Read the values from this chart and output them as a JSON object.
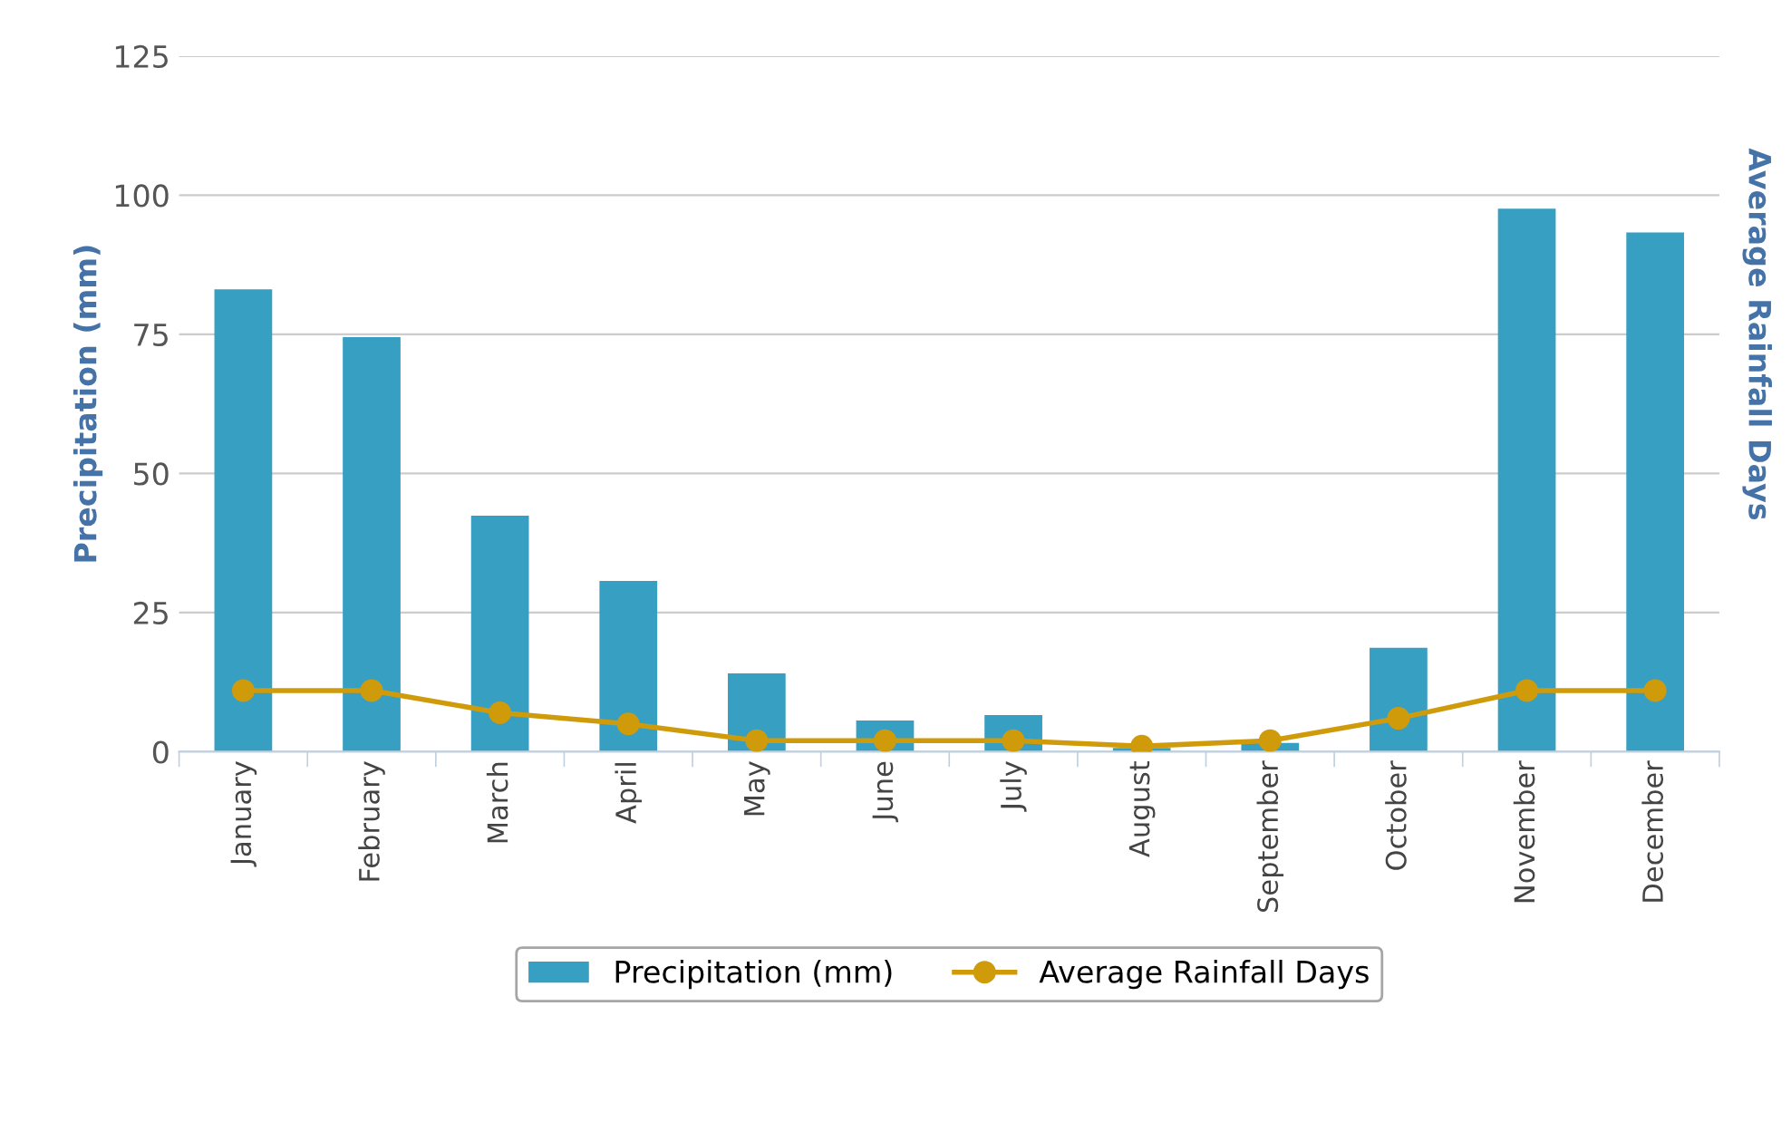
{
  "chart_data": {
    "type": "bar",
    "categories": [
      "January",
      "February",
      "March",
      "April",
      "May",
      "June",
      "July",
      "August",
      "September",
      "October",
      "November",
      "December"
    ],
    "ylabel": "Precipitation (mm)",
    "y2label": "Average Rainfall Days",
    "ylim": [
      0,
      125
    ],
    "yticks": [
      0,
      25,
      50,
      75,
      100,
      125
    ],
    "grid": "y",
    "legend": "bottom",
    "series": [
      {
        "name": "Precipitation (mm)",
        "color": "#379fc1",
        "values": [
          83.1,
          74.5,
          42.4,
          30.7,
          14.1,
          5.6,
          6.6,
          0.7,
          1.6,
          18.7,
          97.6,
          93.3
        ]
      },
      {
        "name": "Average Rainfall Days",
        "type": "line",
        "color": "#d09b0b",
        "marker": "circle",
        "line_style": "solid",
        "values": [
          11,
          11,
          7,
          5,
          2,
          2,
          2,
          1,
          2,
          6,
          11,
          11
        ]
      }
    ]
  }
}
